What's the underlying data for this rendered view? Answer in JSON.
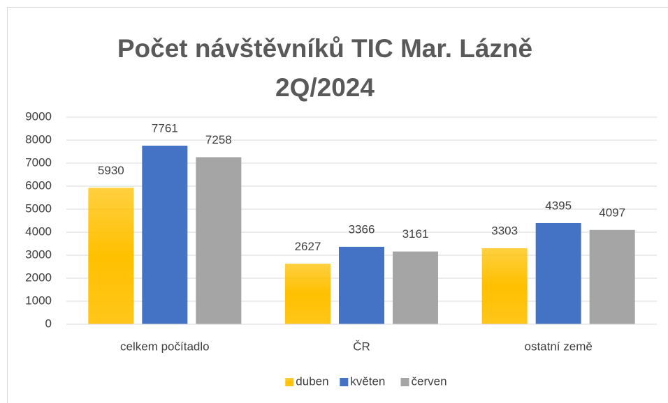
{
  "chart_data": {
    "type": "bar",
    "title": "Počet návštěvníků TIC Mar. Lázně 2Q/2024",
    "categories": [
      "celkem počítadlo",
      "ČR",
      "ostatní země"
    ],
    "series": [
      {
        "name": "duben",
        "color": "#ffc000",
        "values": [
          5930,
          2627,
          3303
        ]
      },
      {
        "name": "květen",
        "color": "#4472c4",
        "values": [
          7761,
          3366,
          4395
        ]
      },
      {
        "name": "červen",
        "color": "#a5a5a5",
        "values": [
          7258,
          3161,
          4097
        ]
      }
    ],
    "ylim": [
      0,
      9000
    ],
    "yticks": [
      0,
      1000,
      2000,
      3000,
      4000,
      5000,
      6000,
      7000,
      8000,
      9000
    ],
    "grid": true,
    "legend": "bottom",
    "data_labels": true
  }
}
